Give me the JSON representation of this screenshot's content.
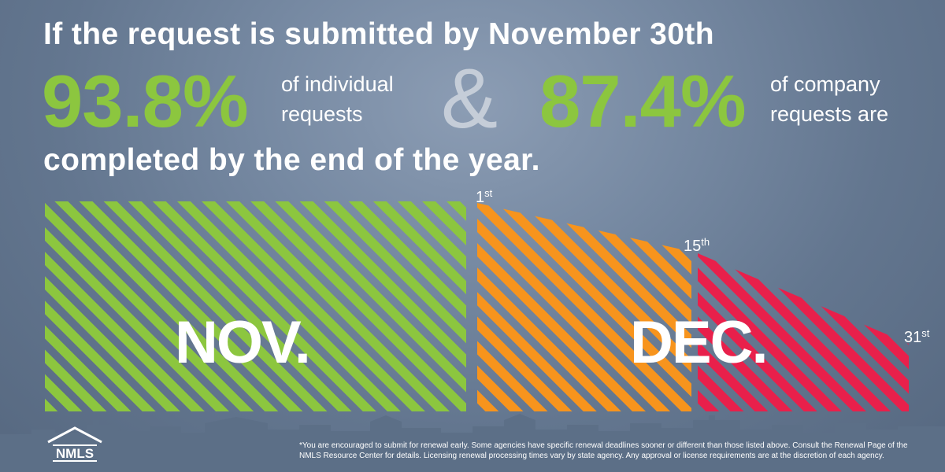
{
  "headline_top": "If the request is submitted by November 30th",
  "stat_individual": {
    "percent": "93.8%",
    "line1": "of individual",
    "line2": "requests"
  },
  "ampersand": "&",
  "stat_company": {
    "percent": "87.4%",
    "line1": "of company",
    "line2": "requests are"
  },
  "headline_bottom": "completed by the end of the year.",
  "timeline": {
    "nov_label": "NOV.",
    "dec_label": "DEC.",
    "day_1": {
      "num": "1",
      "suffix": "st"
    },
    "day_15": {
      "num": "15",
      "suffix": "th"
    },
    "day_31": {
      "num": "31",
      "suffix": "st"
    }
  },
  "footnote": "*You are encouraged to submit for renewal early. Some agencies have specific renewal deadlines sooner or different than those listed above. Consult the Renewal Page of the NMLS Resource Center for details. Licensing renewal processing times vary by state agency. Any approval or license requirements are at the discretion of each agency.",
  "logo_text": "NMLS",
  "colors": {
    "accent_green": "#8cc63f",
    "orange": "#f7941d",
    "red": "#e8204b",
    "ampersand": "#c5cdd8",
    "text": "#ffffff"
  }
}
